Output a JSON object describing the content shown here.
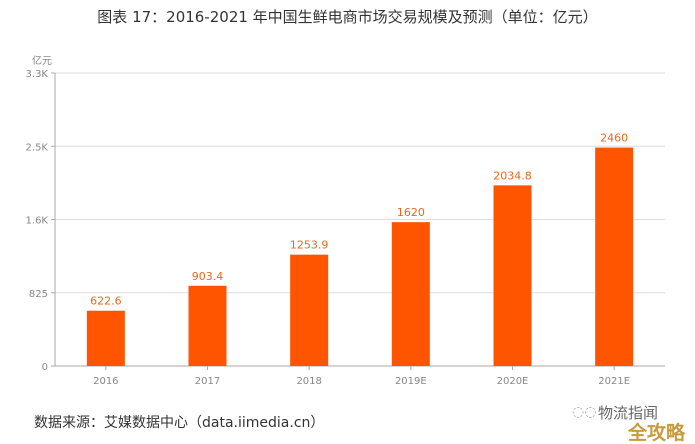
{
  "title": "图表 17：2016-2021 年中国生鲜电商市场交易规模及预测（单位：亿元）",
  "source": "数据来源：艾媒数据中心（data.iimedia.cn）",
  "watermark": {
    "line1": "物流指闻",
    "line2": "全攻略",
    "icon": "wechat-icon"
  },
  "chart_data": {
    "type": "bar",
    "title": "图表 17：2016-2021 年中国生鲜电商市场交易规模及预测（单位：亿元）",
    "ylabel": "亿元",
    "xlabel": "",
    "categories": [
      "2016",
      "2017",
      "2018",
      "2019E",
      "2020E",
      "2021E"
    ],
    "values": [
      622.6,
      903.4,
      1253.9,
      1620,
      2034.8,
      2460
    ],
    "data_labels": [
      "622.6",
      "903.4",
      "1253.9",
      "1620",
      "2034.8",
      "2460"
    ],
    "ylim": [
      0,
      3300
    ],
    "yticks": [
      0,
      825,
      1650,
      2475,
      3300
    ],
    "ytick_labels": [
      "0",
      "825",
      "1.6K",
      "2.5K",
      "3.3K"
    ],
    "grid": true,
    "colors": {
      "bar": "#ff5500",
      "label": "#e8681e",
      "grid": "#dddddd",
      "axis": "#aaaaaa",
      "tick_text": "#888888"
    }
  }
}
